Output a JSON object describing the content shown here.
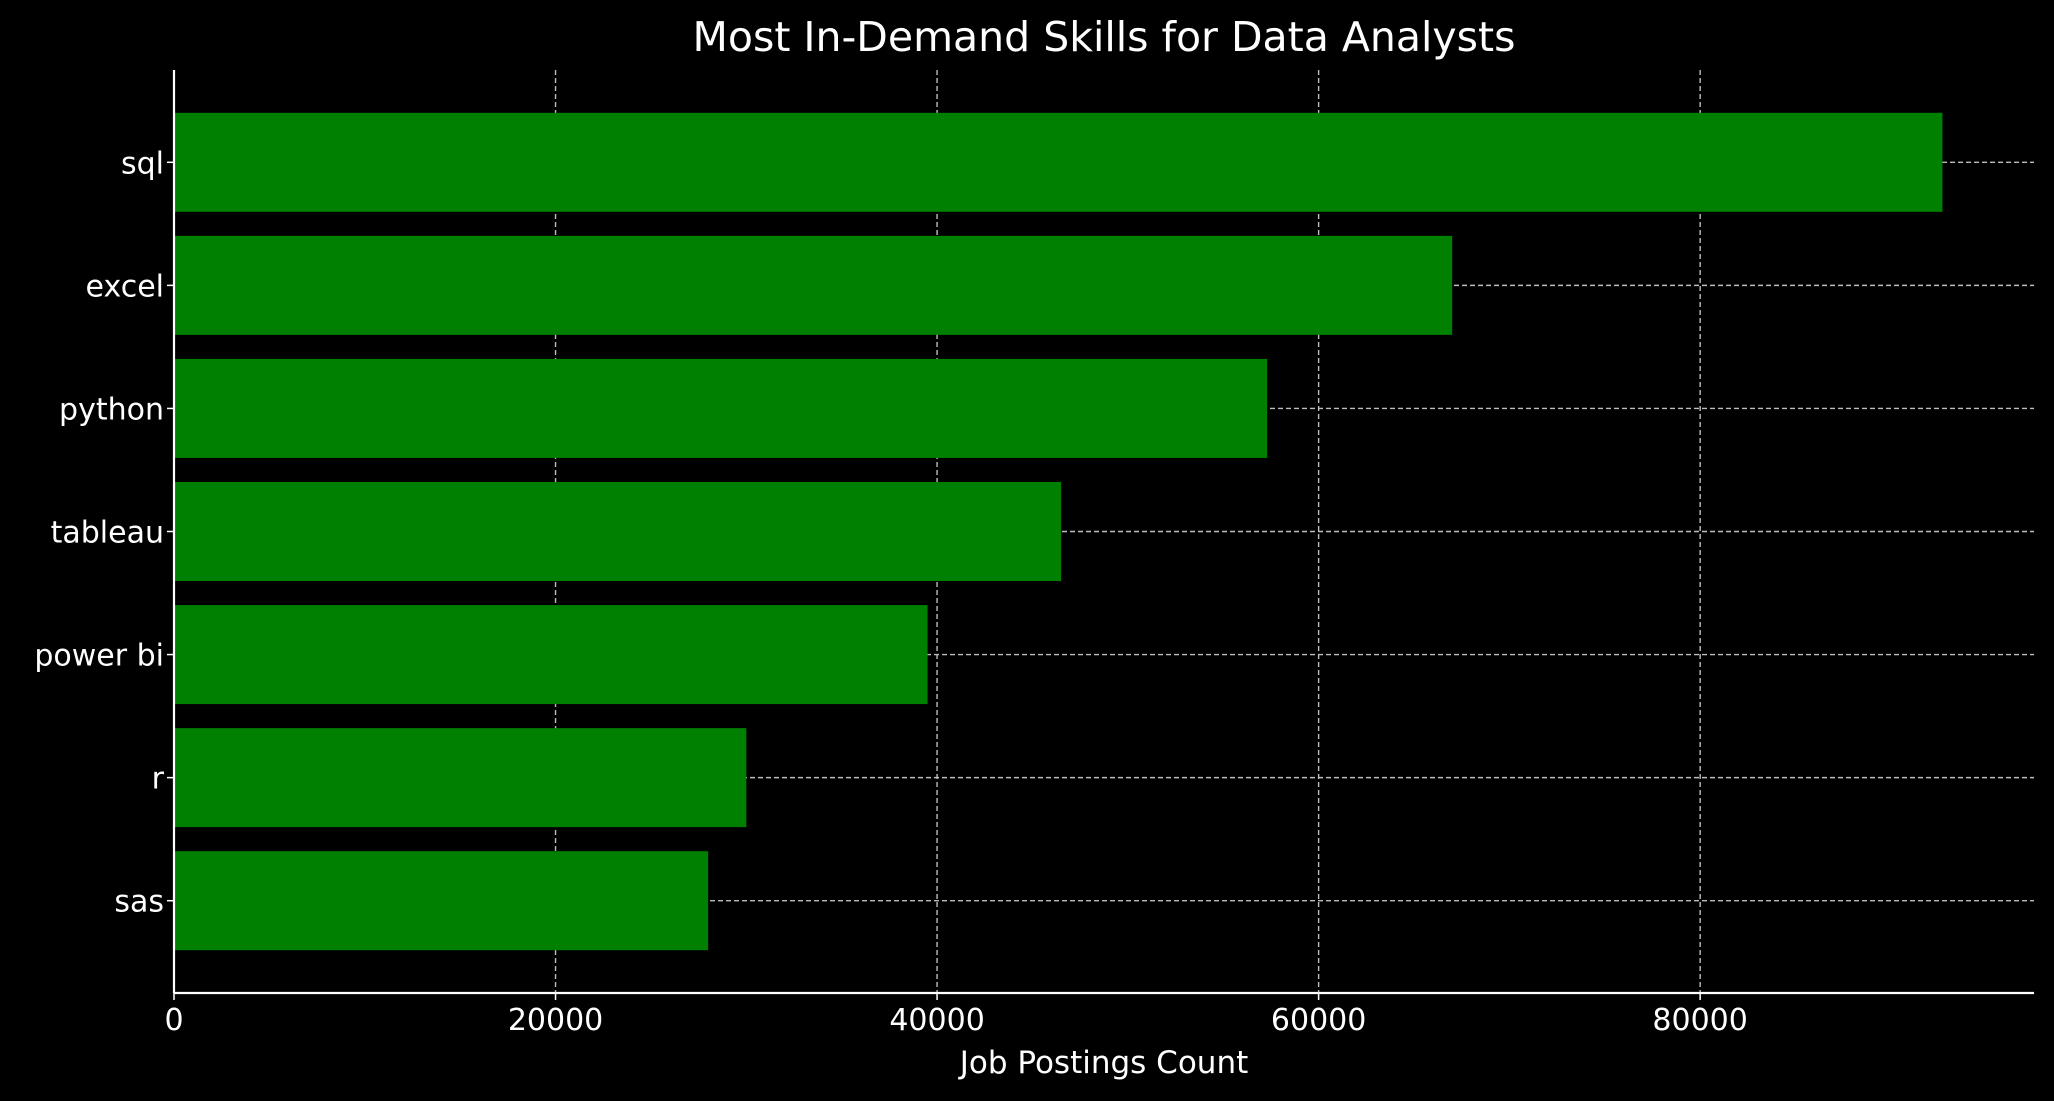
{
  "chart_data": {
    "type": "bar",
    "orientation": "horizontal",
    "title": "Most In-Demand Skills for Data Analysts",
    "xlabel": "Job Postings Count",
    "ylabel": "",
    "categories": [
      "sql",
      "excel",
      "python",
      "tableau",
      "power bi",
      "r",
      "sas"
    ],
    "values": [
      92700,
      67000,
      57300,
      46500,
      39500,
      30000,
      28000
    ],
    "xlim": [
      0,
      97500
    ],
    "xticks": [
      0,
      20000,
      40000,
      60000,
      80000
    ],
    "xtick_labels": [
      "0",
      "20000",
      "40000",
      "60000",
      "80000"
    ],
    "grid": true,
    "grid_style": "dashed",
    "legend": "none",
    "colors": {
      "background": "#000000",
      "bar": "#008000",
      "text": "#ffffff",
      "axis": "#ffffff",
      "grid": "#bdbdbd"
    }
  }
}
